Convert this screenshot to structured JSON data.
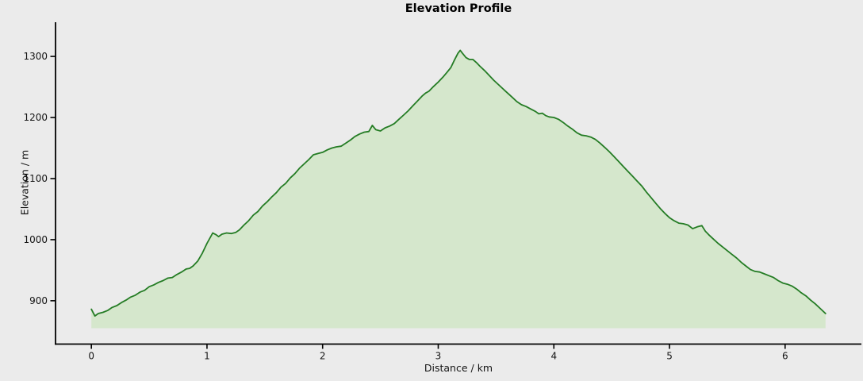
{
  "figure": {
    "background_color": "#ebebeb",
    "text_color": "#141414"
  },
  "chart_data": {
    "type": "area",
    "title": "Elevation Profile",
    "xlabel": "Distance / km",
    "ylabel": "Elevation / m",
    "x_ticks": [
      0,
      1,
      2,
      3,
      4,
      5,
      6
    ],
    "y_ticks": [
      900,
      1000,
      1100,
      1200,
      1300
    ],
    "xlim": [
      -0.31,
      6.66
    ],
    "ylim": [
      829,
      1356
    ],
    "fill_baseline": 855,
    "grid": false,
    "legend": null,
    "line_color": "#247c24",
    "fill_color": "#d5e7cc",
    "spine_color": "#000000",
    "x": [
      0.0,
      0.03,
      0.06,
      0.1,
      0.14,
      0.18,
      0.22,
      0.26,
      0.3,
      0.34,
      0.38,
      0.42,
      0.46,
      0.5,
      0.54,
      0.58,
      0.62,
      0.66,
      0.7,
      0.74,
      0.78,
      0.82,
      0.85,
      0.88,
      0.92,
      0.96,
      1.0,
      1.05,
      1.08,
      1.1,
      1.13,
      1.17,
      1.21,
      1.25,
      1.28,
      1.32,
      1.36,
      1.4,
      1.44,
      1.48,
      1.52,
      1.56,
      1.6,
      1.64,
      1.68,
      1.72,
      1.76,
      1.8,
      1.84,
      1.88,
      1.92,
      1.96,
      2.0,
      2.04,
      2.08,
      2.12,
      2.16,
      2.2,
      2.24,
      2.28,
      2.32,
      2.36,
      2.4,
      2.43,
      2.46,
      2.5,
      2.54,
      2.58,
      2.62,
      2.66,
      2.7,
      2.74,
      2.78,
      2.82,
      2.86,
      2.89,
      2.92,
      2.96,
      3.0,
      3.04,
      3.08,
      3.11,
      3.14,
      3.17,
      3.19,
      3.21,
      3.24,
      3.27,
      3.3,
      3.33,
      3.36,
      3.4,
      3.44,
      3.48,
      3.52,
      3.56,
      3.6,
      3.64,
      3.68,
      3.72,
      3.76,
      3.8,
      3.84,
      3.87,
      3.9,
      3.93,
      3.96,
      4.0,
      4.04,
      4.08,
      4.12,
      4.16,
      4.2,
      4.24,
      4.28,
      4.32,
      4.36,
      4.4,
      4.44,
      4.48,
      4.52,
      4.56,
      4.6,
      4.64,
      4.68,
      4.72,
      4.76,
      4.8,
      4.84,
      4.88,
      4.92,
      4.96,
      5.0,
      5.04,
      5.08,
      5.12,
      5.16,
      5.2,
      5.24,
      5.28,
      5.31,
      5.34,
      5.38,
      5.42,
      5.46,
      5.5,
      5.54,
      5.58,
      5.62,
      5.66,
      5.7,
      5.74,
      5.78,
      5.82,
      5.86,
      5.9,
      5.94,
      5.98,
      6.02,
      6.06,
      6.1,
      6.14,
      6.18,
      6.22,
      6.26,
      6.3,
      6.35
    ],
    "y": [
      886,
      875,
      879,
      881,
      884,
      889,
      892,
      897,
      901,
      906,
      909,
      914,
      917,
      923,
      926,
      930,
      933,
      937,
      938,
      943,
      947,
      952,
      953,
      957,
      965,
      978,
      994,
      1011,
      1008,
      1005,
      1009,
      1011,
      1010,
      1012,
      1016,
      1024,
      1031,
      1040,
      1046,
      1055,
      1062,
      1070,
      1077,
      1086,
      1092,
      1101,
      1108,
      1117,
      1124,
      1131,
      1139,
      1141,
      1143,
      1147,
      1150,
      1152,
      1153,
      1158,
      1163,
      1169,
      1173,
      1176,
      1177,
      1187,
      1180,
      1178,
      1183,
      1186,
      1190,
      1197,
      1204,
      1211,
      1219,
      1227,
      1235,
      1240,
      1243,
      1251,
      1258,
      1266,
      1275,
      1282,
      1294,
      1305,
      1310,
      1305,
      1298,
      1295,
      1295,
      1290,
      1284,
      1277,
      1269,
      1261,
      1254,
      1247,
      1240,
      1233,
      1226,
      1221,
      1218,
      1214,
      1210,
      1206,
      1207,
      1203,
      1201,
      1200,
      1197,
      1192,
      1186,
      1181,
      1175,
      1171,
      1170,
      1168,
      1164,
      1158,
      1151,
      1144,
      1136,
      1128,
      1120,
      1112,
      1104,
      1096,
      1088,
      1078,
      1069,
      1060,
      1051,
      1043,
      1036,
      1031,
      1027,
      1026,
      1024,
      1018,
      1021,
      1023,
      1014,
      1008,
      1001,
      994,
      988,
      982,
      976,
      970,
      963,
      957,
      951,
      948,
      947,
      944,
      941,
      938,
      933,
      929,
      927,
      924,
      919,
      913,
      908,
      901,
      895,
      888,
      879
    ]
  }
}
